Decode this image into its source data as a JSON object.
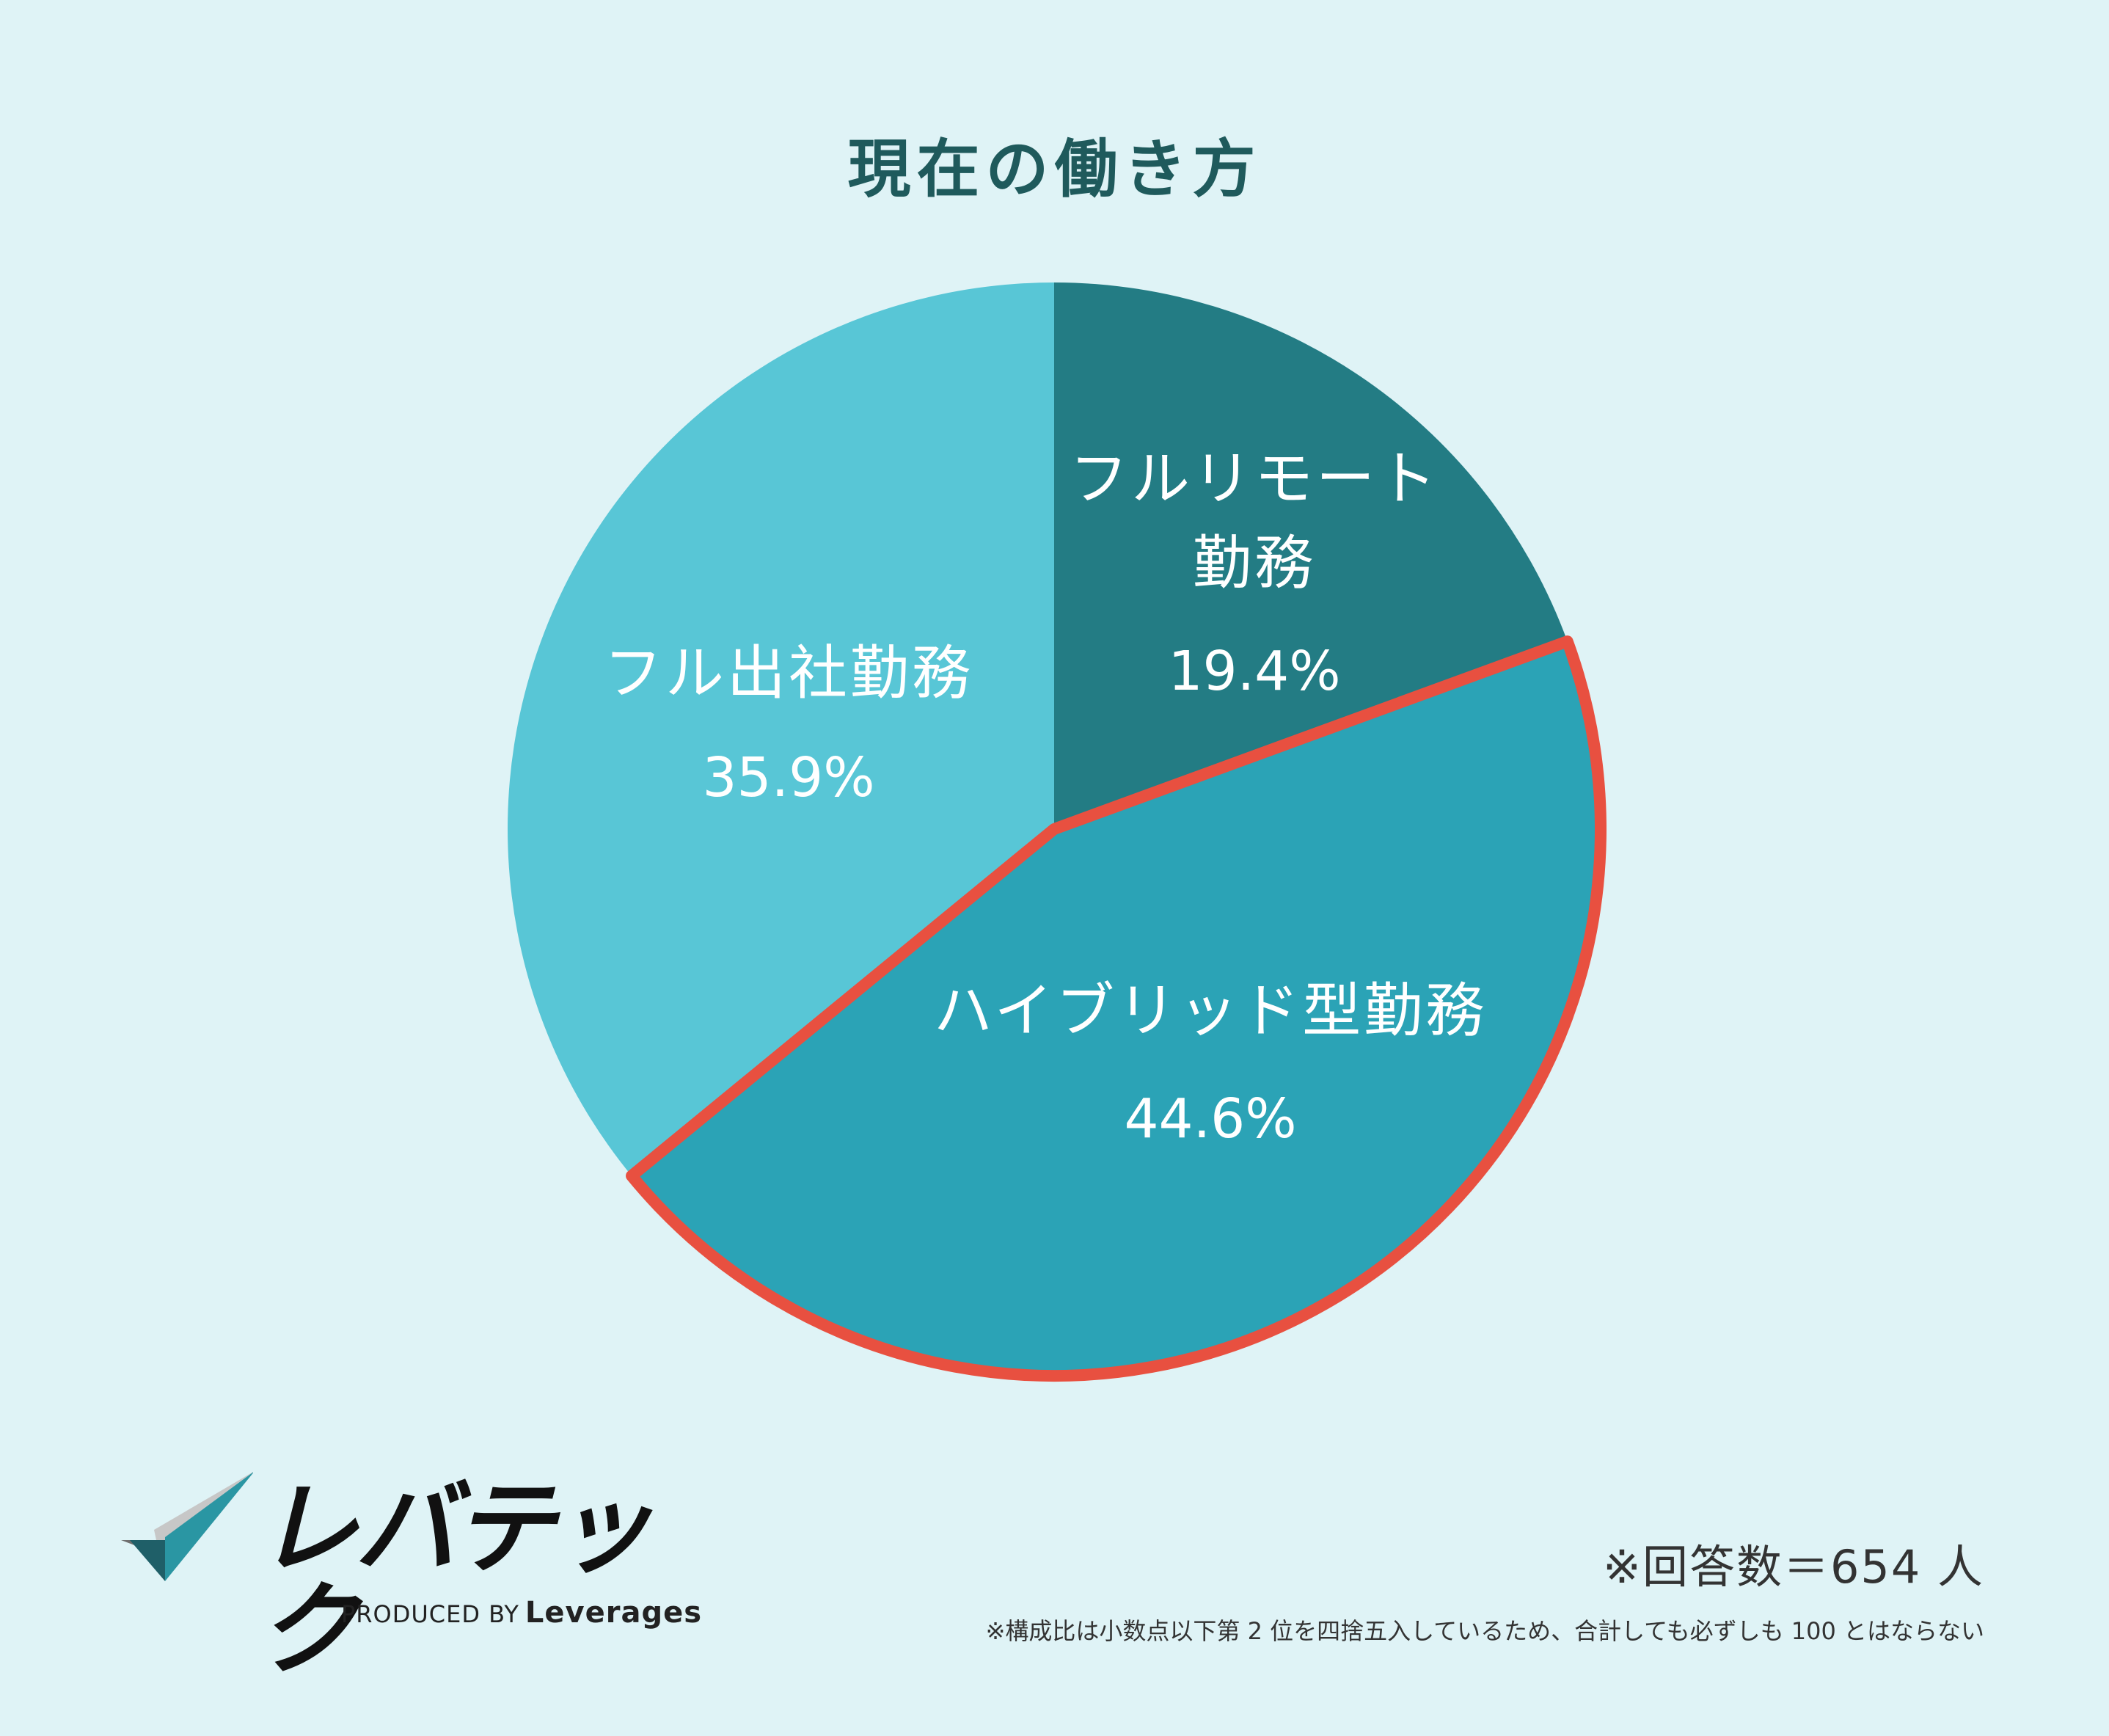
{
  "chart_data": {
    "type": "pie",
    "title": "現在の働き方",
    "slices": [
      {
        "label": "フルリモート勤務",
        "label_lines": [
          "フルリモート",
          "勤務"
        ],
        "value": 19.4,
        "value_text": "19.4%",
        "color": "#237c84",
        "highlighted": false
      },
      {
        "label": "ハイブリッド型勤務",
        "label_lines": [
          "ハイブリッド型勤務"
        ],
        "value": 44.6,
        "value_text": "44.6%",
        "color": "#2ba3b6",
        "highlighted": true
      },
      {
        "label": "フル出社勤務",
        "label_lines": [
          "フル出社勤務"
        ],
        "value": 35.9,
        "value_text": "35.9%",
        "color": "#58c6d6",
        "highlighted": false
      }
    ],
    "start": "12 o'clock",
    "direction": "clockwise",
    "highlight_color": "#e85040"
  },
  "respondents": "※回答数＝654 人",
  "footnote": "※構成比は小数点以下第 2 位を四捨五入しているため、合計しても必ずしも 100 とはならない",
  "logo": {
    "name": "レバテック",
    "produced_by": "PRODUCED BY",
    "brand": "Leverages"
  }
}
